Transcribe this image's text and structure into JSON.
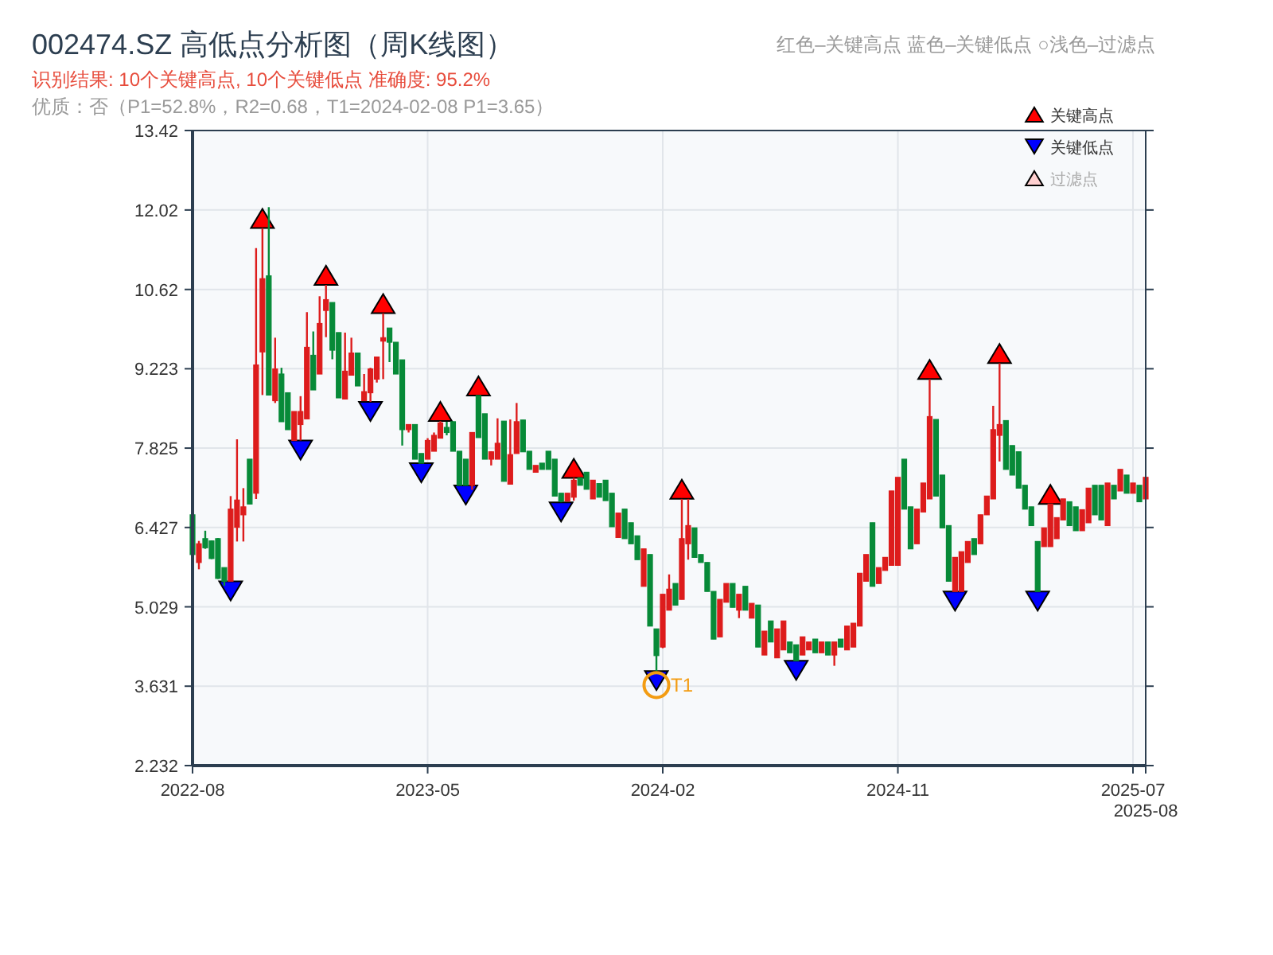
{
  "chart_data": {
    "type": "candlestick",
    "title": "002474.SZ 高低点分析图（周K线图）",
    "subtitle": "识别结果: 10个关键高点, 10个关键低点  准确度: 95.2%",
    "annotations": [
      "红色–关键高点      蓝色–关键低点   ○浅色–过滤点",
      "优质：否（P1=52.8%，R2=0.68，T1=2024-02-08 P1=3.65）"
    ],
    "categories": [
      "2022-08",
      null,
      null,
      null,
      null,
      null,
      null,
      null,
      null,
      null,
      null,
      null,
      null,
      null,
      null,
      null,
      null,
      null,
      null,
      null,
      null,
      null,
      null,
      null,
      null,
      null,
      null,
      null,
      null,
      null,
      null,
      null,
      null,
      null,
      null,
      null,
      null,
      "2023-05",
      null,
      null,
      null,
      null,
      null,
      null,
      null,
      null,
      null,
      null,
      null,
      null,
      null,
      null,
      null,
      null,
      null,
      null,
      null,
      null,
      null,
      null,
      null,
      null,
      null,
      null,
      null,
      null,
      null,
      null,
      null,
      null,
      null,
      null,
      null,
      null,
      "2024-02",
      null,
      null,
      null,
      null,
      null,
      null,
      null,
      null,
      null,
      null,
      null,
      null,
      null,
      null,
      null,
      null,
      null,
      null,
      null,
      null,
      null,
      null,
      null,
      null,
      null,
      null,
      null,
      null,
      null,
      null,
      null,
      null,
      null,
      null,
      null,
      null,
      "2024-11",
      null,
      null,
      null,
      null,
      null,
      null,
      null,
      null,
      null,
      null,
      null,
      null,
      null,
      null,
      null,
      null,
      null,
      null,
      null,
      null,
      null,
      null,
      null,
      null,
      null,
      null,
      null,
      null,
      null,
      null,
      null,
      null,
      null,
      null,
      null,
      null,
      "2025-07",
      null,
      "2025-08"
    ],
    "ylim": [
      2.232,
      13.42
    ],
    "yticks": [
      2.232,
      3.631,
      5.029,
      6.427,
      7.825,
      9.223,
      10.62,
      12.02,
      13.42
    ],
    "grid": true,
    "legend": "top right",
    "series": [
      {
        "type": "candlestick",
        "ohlc": [
          [
            6.65,
            6.65,
            5.95,
            5.95
          ],
          [
            5.81,
            6.19,
            5.69,
            6.14
          ],
          [
            6.23,
            6.37,
            6.05,
            6.07
          ],
          [
            6.19,
            6.2,
            5.87,
            5.88
          ],
          [
            6.23,
            6.24,
            5.52,
            5.53
          ],
          [
            5.72,
            5.72,
            5.4,
            5.48
          ],
          [
            5.48,
            6.98,
            5.48,
            6.75
          ],
          [
            6.43,
            7.98,
            6.18,
            6.91
          ],
          [
            6.65,
            7.12,
            6.18,
            6.79
          ],
          [
            7.63,
            7.63,
            6.84,
            6.84
          ],
          [
            7.03,
            11.35,
            6.93,
            9.29
          ],
          [
            9.52,
            11.7,
            8.76,
            10.81
          ],
          [
            10.86,
            12.07,
            8.76,
            8.76
          ],
          [
            8.66,
            9.77,
            8.62,
            9.22
          ],
          [
            9.13,
            9.24,
            8.29,
            8.29
          ],
          [
            8.8,
            8.8,
            8.15,
            8.15
          ],
          [
            7.96,
            8.47,
            7.96,
            8.47
          ],
          [
            8.24,
            8.74,
            7.96,
            8.47
          ],
          [
            8.34,
            10.22,
            8.34,
            9.6
          ],
          [
            9.46,
            9.88,
            8.85,
            8.85
          ],
          [
            9.13,
            10.5,
            9.13,
            10.02
          ],
          [
            10.25,
            10.7,
            9.78,
            10.44
          ],
          [
            10.39,
            10.39,
            9.39,
            9.55
          ],
          [
            9.86,
            9.86,
            8.71,
            8.71
          ],
          [
            8.69,
            9.86,
            8.69,
            9.18
          ],
          [
            9.11,
            9.77,
            9.11,
            9.5
          ],
          [
            9.5,
            9.5,
            8.92,
            8.92
          ],
          [
            8.66,
            9.13,
            8.66,
            8.82
          ],
          [
            8.8,
            9.24,
            8.64,
            9.22
          ],
          [
            9.04,
            9.43,
            8.98,
            9.43
          ],
          [
            9.71,
            10.2,
            9.04,
            9.77
          ],
          [
            9.94,
            9.94,
            9.34,
            9.69
          ],
          [
            9.69,
            9.69,
            9.13,
            9.13
          ],
          [
            9.38,
            9.38,
            7.87,
            8.15
          ],
          [
            8.15,
            8.24,
            8.1,
            8.24
          ],
          [
            8.24,
            8.24,
            7.63,
            7.63
          ],
          [
            7.73,
            7.73,
            7.56,
            7.56
          ],
          [
            7.63,
            8.0,
            7.63,
            7.96
          ],
          [
            7.77,
            8.1,
            7.77,
            8.05
          ],
          [
            8.0,
            8.3,
            8.0,
            8.27
          ],
          [
            8.19,
            8.29,
            8.05,
            8.1
          ],
          [
            8.29,
            8.29,
            7.77,
            7.77
          ],
          [
            7.77,
            7.77,
            7.17,
            7.17
          ],
          [
            7.63,
            7.63,
            7.17,
            7.17
          ],
          [
            7.17,
            8.1,
            7.09,
            8.1
          ],
          [
            8.75,
            8.75,
            8.01,
            8.01
          ],
          [
            8.43,
            8.43,
            7.63,
            7.63
          ],
          [
            7.63,
            7.77,
            7.52,
            7.76
          ],
          [
            7.63,
            8.35,
            7.63,
            7.91
          ],
          [
            8.3,
            8.3,
            7.24,
            7.24
          ],
          [
            7.19,
            8.33,
            7.19,
            7.71
          ],
          [
            7.73,
            8.62,
            7.73,
            8.29
          ],
          [
            8.32,
            8.32,
            7.76,
            7.76
          ],
          [
            7.77,
            7.77,
            7.45,
            7.45
          ],
          [
            7.4,
            7.52,
            7.4,
            7.52
          ],
          [
            7.56,
            7.56,
            7.45,
            7.45
          ],
          [
            7.77,
            7.77,
            7.45,
            7.45
          ],
          [
            7.63,
            7.63,
            6.98,
            6.98
          ],
          [
            7.03,
            7.03,
            6.87,
            6.89
          ],
          [
            6.89,
            7.03,
            6.89,
            7.03
          ],
          [
            6.96,
            7.3,
            6.9,
            7.26
          ],
          [
            7.3,
            7.3,
            7.17,
            7.17
          ],
          [
            7.4,
            7.4,
            7.1,
            7.1
          ],
          [
            6.93,
            7.26,
            6.93,
            7.26
          ],
          [
            7.2,
            7.2,
            6.96,
            6.96
          ],
          [
            7.26,
            7.26,
            6.9,
            6.9
          ],
          [
            7.03,
            7.03,
            6.44,
            6.44
          ],
          [
            6.25,
            6.68,
            6.25,
            6.68
          ],
          [
            6.75,
            6.75,
            6.23,
            6.23
          ],
          [
            6.51,
            6.51,
            6.14,
            6.14
          ],
          [
            6.28,
            6.28,
            5.86,
            5.86
          ],
          [
            5.39,
            6.05,
            5.39,
            6.05
          ],
          [
            5.95,
            5.95,
            4.69,
            4.69
          ],
          [
            4.64,
            4.64,
            3.9,
            4.17
          ],
          [
            4.32,
            5.25,
            4.3,
            5.25
          ],
          [
            4.97,
            5.6,
            4.97,
            5.34
          ],
          [
            5.44,
            5.44,
            5.06,
            5.06
          ],
          [
            5.16,
            6.93,
            5.16,
            6.23
          ],
          [
            6.14,
            6.93,
            5.86,
            6.46
          ],
          [
            6.42,
            6.42,
            5.9,
            5.9
          ],
          [
            5.95,
            5.95,
            5.81,
            5.81
          ],
          [
            5.81,
            5.81,
            5.3,
            5.3
          ],
          [
            5.3,
            5.3,
            4.46,
            4.46
          ],
          [
            4.5,
            5.16,
            4.5,
            5.16
          ],
          [
            5.11,
            5.44,
            5.11,
            5.44
          ],
          [
            5.44,
            5.44,
            5.02,
            5.02
          ],
          [
            4.97,
            5.25,
            4.83,
            5.25
          ],
          [
            5.39,
            5.39,
            4.97,
            4.97
          ],
          [
            4.83,
            5.09,
            4.83,
            5.09
          ],
          [
            5.06,
            5.06,
            4.32,
            4.32
          ],
          [
            4.18,
            4.6,
            4.18,
            4.6
          ],
          [
            4.78,
            4.78,
            4.41,
            4.41
          ],
          [
            4.13,
            4.64,
            4.13,
            4.64
          ],
          [
            4.27,
            4.78,
            4.27,
            4.78
          ],
          [
            4.41,
            4.41,
            4.22,
            4.22
          ],
          [
            4.36,
            4.36,
            4.08,
            4.08
          ],
          [
            4.18,
            4.5,
            4.18,
            4.5
          ],
          [
            4.27,
            4.41,
            4.27,
            4.41
          ],
          [
            4.46,
            4.46,
            4.22,
            4.22
          ],
          [
            4.22,
            4.41,
            4.22,
            4.41
          ],
          [
            4.41,
            4.41,
            4.18,
            4.18
          ],
          [
            4.18,
            4.41,
            3.99,
            4.41
          ],
          [
            4.46,
            4.46,
            4.32,
            4.32
          ],
          [
            4.27,
            4.69,
            4.27,
            4.69
          ],
          [
            4.32,
            4.74,
            4.32,
            4.74
          ],
          [
            4.69,
            5.62,
            4.69,
            5.62
          ],
          [
            5.48,
            5.95,
            5.48,
            5.95
          ],
          [
            6.51,
            6.51,
            5.39,
            5.39
          ],
          [
            5.44,
            5.72,
            5.44,
            5.72
          ],
          [
            5.67,
            5.9,
            5.67,
            5.9
          ],
          [
            5.76,
            7.07,
            5.76,
            7.07
          ],
          [
            5.76,
            7.31,
            5.76,
            7.31
          ],
          [
            7.63,
            7.63,
            6.75,
            6.75
          ],
          [
            6.79,
            6.79,
            6.05,
            6.05
          ],
          [
            6.14,
            6.75,
            6.14,
            6.75
          ],
          [
            6.7,
            7.21,
            6.7,
            7.21
          ],
          [
            6.93,
            9.04,
            6.93,
            8.38
          ],
          [
            8.33,
            8.33,
            6.98,
            6.98
          ],
          [
            7.35,
            7.35,
            6.42,
            6.42
          ],
          [
            6.46,
            6.46,
            5.48,
            5.48
          ],
          [
            5.3,
            5.9,
            5.3,
            5.9
          ],
          [
            5.3,
            6.0,
            5.3,
            6.0
          ],
          [
            5.81,
            6.18,
            5.81,
            6.18
          ],
          [
            6.23,
            6.23,
            5.95,
            5.95
          ],
          [
            6.14,
            6.65,
            6.14,
            6.65
          ],
          [
            6.65,
            6.98,
            6.65,
            6.98
          ],
          [
            6.93,
            8.57,
            6.93,
            8.15
          ],
          [
            8.05,
            9.32,
            7.59,
            8.24
          ],
          [
            8.31,
            8.31,
            7.45,
            7.45
          ],
          [
            7.87,
            7.87,
            7.35,
            7.35
          ],
          [
            7.76,
            7.76,
            7.12,
            7.12
          ],
          [
            7.17,
            7.17,
            6.75,
            6.75
          ],
          [
            6.79,
            6.79,
            6.46,
            6.46
          ],
          [
            6.18,
            6.18,
            5.3,
            5.3
          ],
          [
            6.09,
            6.42,
            6.09,
            6.42
          ],
          [
            6.09,
            6.84,
            6.09,
            6.84
          ],
          [
            6.23,
            6.6,
            6.23,
            6.6
          ],
          [
            6.56,
            6.93,
            6.56,
            6.93
          ],
          [
            6.88,
            6.88,
            6.46,
            6.46
          ],
          [
            6.79,
            6.79,
            6.37,
            6.37
          ],
          [
            6.37,
            6.74,
            6.37,
            6.74
          ],
          [
            6.51,
            7.12,
            6.51,
            7.12
          ],
          [
            7.17,
            7.17,
            6.65,
            6.65
          ],
          [
            7.17,
            7.17,
            6.56,
            6.56
          ],
          [
            6.46,
            7.21,
            6.46,
            7.21
          ],
          [
            7.17,
            7.17,
            6.93,
            6.93
          ],
          [
            7.07,
            7.45,
            7.07,
            7.45
          ],
          [
            7.35,
            7.35,
            7.03,
            7.03
          ],
          [
            7.03,
            7.21,
            7.03,
            7.21
          ],
          [
            7.17,
            7.17,
            6.88,
            6.88
          ],
          [
            6.93,
            7.31,
            6.93,
            7.31
          ]
        ],
        "colors": [
          "#078a38",
          "#dd1c1c",
          "#078a38",
          "#078a38",
          "#078a38",
          "#078a38",
          "#dd1c1c",
          "#dd1c1c",
          "#dd1c1c",
          "#078a38",
          "#dd1c1c",
          "#dd1c1c",
          "#078a38",
          "#dd1c1c",
          "#078a38",
          "#078a38",
          "#dd1c1c",
          "#dd1c1c",
          "#dd1c1c",
          "#078a38",
          "#dd1c1c",
          "#dd1c1c",
          "#078a38",
          "#078a38",
          "#dd1c1c",
          "#dd1c1c",
          "#078a38",
          "#dd1c1c",
          "#dd1c1c",
          "#dd1c1c",
          "#dd1c1c",
          "#078a38",
          "#078a38",
          "#078a38",
          "#dd1c1c",
          "#078a38",
          "#078a38",
          "#dd1c1c",
          "#dd1c1c",
          "#dd1c1c",
          "#078a38",
          "#078a38",
          "#078a38",
          "#078a38",
          "#dd1c1c",
          "#078a38",
          "#078a38",
          "#dd1c1c",
          "#dd1c1c",
          "#078a38",
          "#dd1c1c",
          "#dd1c1c",
          "#078a38",
          "#078a38",
          "#dd1c1c",
          "#078a38",
          "#078a38",
          "#078a38",
          "#078a38",
          "#dd1c1c",
          "#dd1c1c",
          "#078a38",
          "#078a38",
          "#dd1c1c",
          "#078a38",
          "#078a38",
          "#078a38",
          "#dd1c1c",
          "#078a38",
          "#078a38",
          "#078a38",
          "#dd1c1c",
          "#078a38",
          "#078a38",
          "#dd1c1c",
          "#dd1c1c",
          "#078a38",
          "#dd1c1c",
          "#dd1c1c",
          "#078a38",
          "#078a38",
          "#078a38",
          "#078a38",
          "#dd1c1c",
          "#dd1c1c",
          "#078a38",
          "#dd1c1c",
          "#078a38",
          "#dd1c1c",
          "#078a38",
          "#dd1c1c",
          "#078a38",
          "#dd1c1c",
          "#dd1c1c",
          "#078a38",
          "#078a38",
          "#dd1c1c",
          "#dd1c1c",
          "#078a38",
          "#dd1c1c",
          "#078a38",
          "#dd1c1c",
          "#078a38",
          "#dd1c1c",
          "#dd1c1c",
          "#dd1c1c",
          "#dd1c1c",
          "#078a38",
          "#dd1c1c",
          "#dd1c1c",
          "#dd1c1c",
          "#dd1c1c",
          "#078a38",
          "#078a38",
          "#dd1c1c",
          "#dd1c1c",
          "#dd1c1c",
          "#078a38",
          "#078a38",
          "#078a38",
          "#dd1c1c",
          "#dd1c1c",
          "#dd1c1c",
          "#078a38",
          "#dd1c1c",
          "#dd1c1c",
          "#dd1c1c",
          "#dd1c1c",
          "#078a38",
          "#078a38",
          "#078a38",
          "#078a38",
          "#078a38",
          "#078a38",
          "#dd1c1c",
          "#dd1c1c",
          "#dd1c1c",
          "#dd1c1c",
          "#078a38",
          "#078a38",
          "#dd1c1c",
          "#dd1c1c",
          "#078a38",
          "#078a38",
          "#dd1c1c",
          "#078a38",
          "#dd1c1c",
          "#078a38",
          "#dd1c1c",
          "#078a38",
          "#dd1c1c"
        ]
      },
      {
        "type": "scatter",
        "name": "关键高点",
        "color": "#ff0000",
        "marker": "triangle",
        "values": [
          null,
          null,
          null,
          null,
          null,
          null,
          null,
          null,
          null,
          null,
          null,
          11.87,
          null,
          null,
          null,
          null,
          null,
          null,
          null,
          null,
          null,
          10.87,
          null,
          null,
          null,
          null,
          null,
          null,
          null,
          null,
          10.37,
          null,
          null,
          null,
          null,
          null,
          null,
          null,
          null,
          8.47,
          null,
          null,
          null,
          null,
          null,
          8.92,
          null,
          null,
          null,
          null,
          null,
          null,
          null,
          null,
          null,
          null,
          null,
          null,
          null,
          null,
          7.47,
          null,
          null,
          null,
          null,
          null,
          null,
          null,
          null,
          null,
          null,
          null,
          null,
          null,
          null,
          null,
          null,
          7.1,
          null,
          null,
          null,
          null,
          null,
          null,
          null,
          null,
          null,
          null,
          null,
          null,
          null,
          null,
          null,
          null,
          null,
          null,
          null,
          null,
          null,
          null,
          null,
          null,
          null,
          null,
          null,
          null,
          null,
          null,
          null,
          null,
          null,
          null,
          null,
          null,
          null,
          null,
          9.21,
          null,
          null,
          null,
          null,
          null,
          null,
          null,
          null,
          null,
          null,
          9.49,
          null,
          null,
          null,
          null,
          null,
          null,
          null,
          7.01,
          null,
          null,
          null,
          null,
          null,
          null,
          null,
          null,
          null,
          null,
          null,
          null,
          null,
          null,
          null
        ]
      },
      {
        "type": "scatter",
        "name": "关键低点",
        "color": "#0000ff",
        "marker": "triangle",
        "values": [
          null,
          null,
          null,
          null,
          null,
          null,
          5.31,
          null,
          null,
          null,
          null,
          null,
          null,
          null,
          null,
          null,
          null,
          7.79,
          null,
          null,
          null,
          null,
          null,
          null,
          null,
          null,
          null,
          null,
          8.47,
          null,
          null,
          null,
          null,
          null,
          null,
          null,
          7.39,
          null,
          null,
          null,
          null,
          null,
          null,
          7.0,
          null,
          null,
          null,
          null,
          null,
          null,
          null,
          null,
          null,
          null,
          null,
          null,
          null,
          null,
          6.7,
          null,
          null,
          null,
          null,
          null,
          null,
          null,
          null,
          null,
          null,
          null,
          null,
          null,
          null,
          3.73,
          null,
          null,
          null,
          null,
          null,
          null,
          null,
          null,
          null,
          null,
          null,
          null,
          null,
          null,
          null,
          null,
          null,
          null,
          null,
          null,
          null,
          3.91,
          null,
          null,
          null,
          null,
          null,
          null,
          null,
          null,
          null,
          null,
          null,
          null,
          null,
          null,
          null,
          null,
          null,
          null,
          null,
          null,
          null,
          null,
          null,
          null,
          5.13,
          null,
          null,
          null,
          null,
          null,
          null,
          null,
          null,
          null,
          null,
          null,
          null,
          5.13,
          null,
          null,
          null,
          null,
          null,
          null,
          null,
          null,
          null,
          null,
          null,
          null,
          null,
          null,
          null,
          null,
          null
        ]
      },
      {
        "type": "scatter",
        "name": "过滤点",
        "color": "#ffd0d0",
        "marker": "triangle",
        "values": [
          null,
          null,
          null,
          null,
          null,
          null,
          null,
          null,
          null,
          null,
          null,
          null,
          null,
          null,
          null,
          null,
          null,
          null,
          null,
          null,
          null,
          null,
          null,
          null,
          null,
          null,
          null,
          null,
          null,
          null,
          null,
          null,
          null,
          null,
          null,
          null,
          null,
          null,
          null,
          null,
          null,
          null,
          null,
          null,
          null,
          null,
          null,
          null,
          null,
          null,
          null,
          null,
          null,
          null,
          null,
          null,
          null,
          null,
          null,
          null,
          null,
          null,
          null,
          null,
          null,
          null,
          null,
          null,
          null,
          null,
          null,
          null,
          null,
          null,
          null,
          null,
          null,
          null,
          null,
          null,
          null,
          null,
          null,
          null,
          null,
          null,
          null,
          null,
          null,
          null,
          null,
          null,
          null,
          null,
          null,
          null,
          null,
          null,
          null,
          null,
          null,
          null,
          null,
          null,
          null,
          null,
          null,
          null,
          null,
          null,
          null,
          null,
          null,
          null,
          null,
          null,
          null,
          null,
          null,
          null,
          null,
          null,
          null,
          null,
          null,
          null,
          null,
          null,
          null,
          null,
          null,
          null,
          null,
          null,
          null,
          null,
          null,
          null,
          null,
          null,
          null,
          null,
          null,
          null,
          null,
          null,
          null,
          null,
          null,
          null,
          null
        ]
      },
      {
        "type": "scatter",
        "name": "T1",
        "color": "#f39c12",
        "marker": "circle",
        "values": [
          null,
          null,
          null,
          null,
          null,
          null,
          null,
          null,
          null,
          null,
          null,
          null,
          null,
          null,
          null,
          null,
          null,
          null,
          null,
          null,
          null,
          null,
          null,
          null,
          null,
          null,
          null,
          null,
          null,
          null,
          null,
          null,
          null,
          null,
          null,
          null,
          null,
          null,
          null,
          null,
          null,
          null,
          null,
          null,
          null,
          null,
          null,
          null,
          null,
          null,
          null,
          null,
          null,
          null,
          null,
          null,
          null,
          null,
          null,
          null,
          null,
          null,
          null,
          null,
          null,
          null,
          null,
          null,
          null,
          null,
          null,
          null,
          null,
          3.65,
          null,
          null,
          null,
          null,
          null,
          null,
          null,
          null,
          null,
          null,
          null,
          null,
          null,
          null,
          null,
          null,
          null,
          null,
          null,
          null,
          null,
          null,
          null,
          null,
          null,
          null,
          null,
          null,
          null,
          null,
          null,
          null,
          null,
          null,
          null,
          null,
          null,
          null,
          null,
          null,
          null,
          null,
          null,
          null,
          null,
          null,
          null,
          null,
          null,
          null,
          null,
          null,
          null,
          null,
          null,
          null,
          null,
          null,
          null,
          null,
          null,
          null,
          null,
          null,
          null,
          null,
          null,
          null,
          null,
          null,
          null,
          null,
          null,
          null,
          null,
          null,
          null
        ]
      }
    ]
  }
}
